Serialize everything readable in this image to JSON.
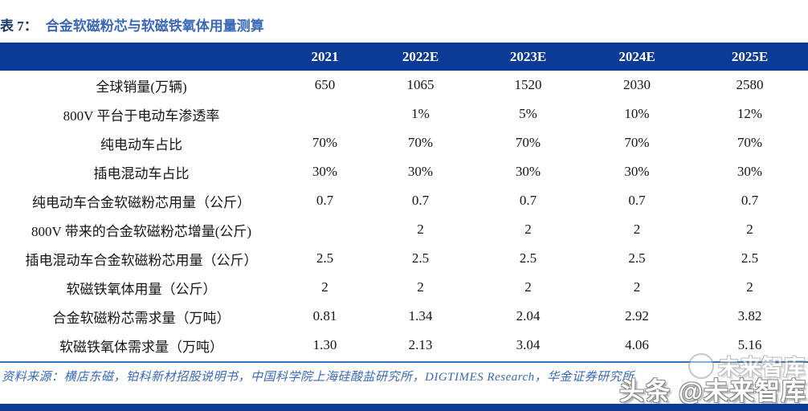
{
  "title": {
    "label": "表 7：",
    "text": "合金软磁粉芯与软磁铁氧体用量测算"
  },
  "table": {
    "header": [
      "",
      "2021",
      "2022E",
      "2023E",
      "2024E",
      "2025E"
    ],
    "rows": [
      {
        "label": "全球销量(万辆)",
        "values": [
          "650",
          "1065",
          "1520",
          "2030",
          "2580"
        ]
      },
      {
        "label": "800V 平台于电动车渗透率",
        "values": [
          "",
          "1%",
          "5%",
          "10%",
          "12%"
        ]
      },
      {
        "label": "纯电动车占比",
        "values": [
          "70%",
          "70%",
          "70%",
          "70%",
          "70%"
        ]
      },
      {
        "label": "插电混动车占比",
        "values": [
          "30%",
          "30%",
          "30%",
          "30%",
          "30%"
        ]
      },
      {
        "label": "纯电动车合金软磁粉芯用量（公斤）",
        "values": [
          "0.7",
          "0.7",
          "0.7",
          "0.7",
          "0.7"
        ]
      },
      {
        "label": "800V 带来的合金软磁粉芯增量(公斤)",
        "values": [
          "",
          "2",
          "2",
          "2",
          "2"
        ]
      },
      {
        "label": "插电混动车合金软磁粉芯用量（公斤）",
        "values": [
          "2.5",
          "2.5",
          "2.5",
          "2.5",
          "2.5"
        ]
      },
      {
        "label": "软磁铁氧体用量（公斤）",
        "values": [
          "2",
          "2",
          "2",
          "2",
          "2"
        ]
      },
      {
        "label": "合金软磁粉芯需求量（万吨）",
        "values": [
          "0.81",
          "1.34",
          "2.04",
          "2.92",
          "3.82"
        ]
      },
      {
        "label": "软磁铁氧体需求量（万吨）",
        "values": [
          "1.30",
          "2.13",
          "3.04",
          "4.06",
          "5.16"
        ]
      }
    ]
  },
  "source": {
    "text": "资料来源：横店东磁，铂科新材招股说明书，中国科学院上海硅酸盐研究所，DIGTIMES Research，华金证券研究所"
  },
  "watermark": {
    "line1": "未来智库",
    "line2": "头条 @未来智库"
  },
  "colors": {
    "header_bar": "#0b3b96",
    "title_label": "#1e3a68",
    "title_text": "#3a68b8",
    "separator": "#2e75b6",
    "source_text": "#3a68b8",
    "bottom_bar": "#0b3b96"
  }
}
